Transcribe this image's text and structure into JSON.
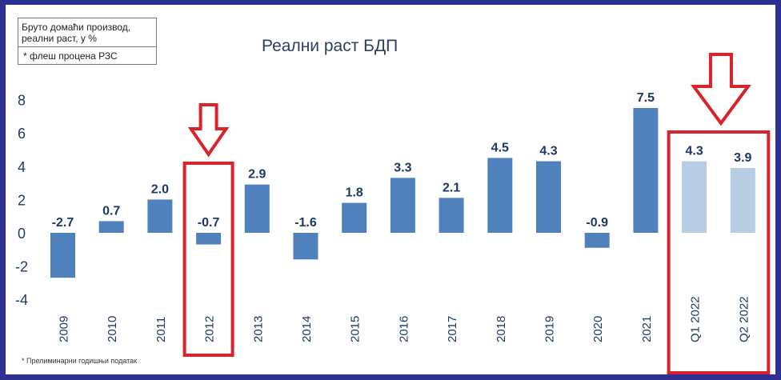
{
  "header": {
    "box_line1": "Бруто домаћи производ,",
    "box_line2": "реални раст, у %",
    "box_note": "* флеш процена РЗС"
  },
  "footnote": "* Прелиминарни годишњи податак",
  "chart_data": {
    "type": "bar",
    "title": "Реални раст БДП",
    "xlabel": "",
    "ylabel": "",
    "categories": [
      "2009",
      "2010",
      "2011",
      "2012",
      "2013",
      "2014",
      "2015",
      "2016",
      "2017",
      "2018",
      "2019",
      "2020",
      "2021",
      "Q1 2022",
      "Q2 2022"
    ],
    "values": [
      -2.7,
      0.7,
      2.0,
      -0.7,
      2.9,
      -1.6,
      1.8,
      3.3,
      2.1,
      4.5,
      4.3,
      -0.9,
      7.5,
      4.3,
      3.9
    ],
    "value_labels": [
      "-2.7",
      "0.7",
      "2.0",
      "-0.7",
      "2.9",
      "-1.6",
      "1.8",
      "3.3",
      "2.1",
      "4.5",
      "4.3",
      "-0.9",
      "7.5",
      "4.3",
      "3.9"
    ],
    "ylim": [
      -4,
      8
    ],
    "yticks": [
      "-4",
      "-2",
      "0",
      "2",
      "4",
      "6",
      "8"
    ],
    "grid": false,
    "legend": "none",
    "colors": {
      "bar": "#4f81bd",
      "bar_light": "#b8cce4",
      "highlight": "#d9232a",
      "text": "#1f3864"
    },
    "highlights": [
      "2012",
      "Q1 2022",
      "Q2 2022"
    ]
  }
}
